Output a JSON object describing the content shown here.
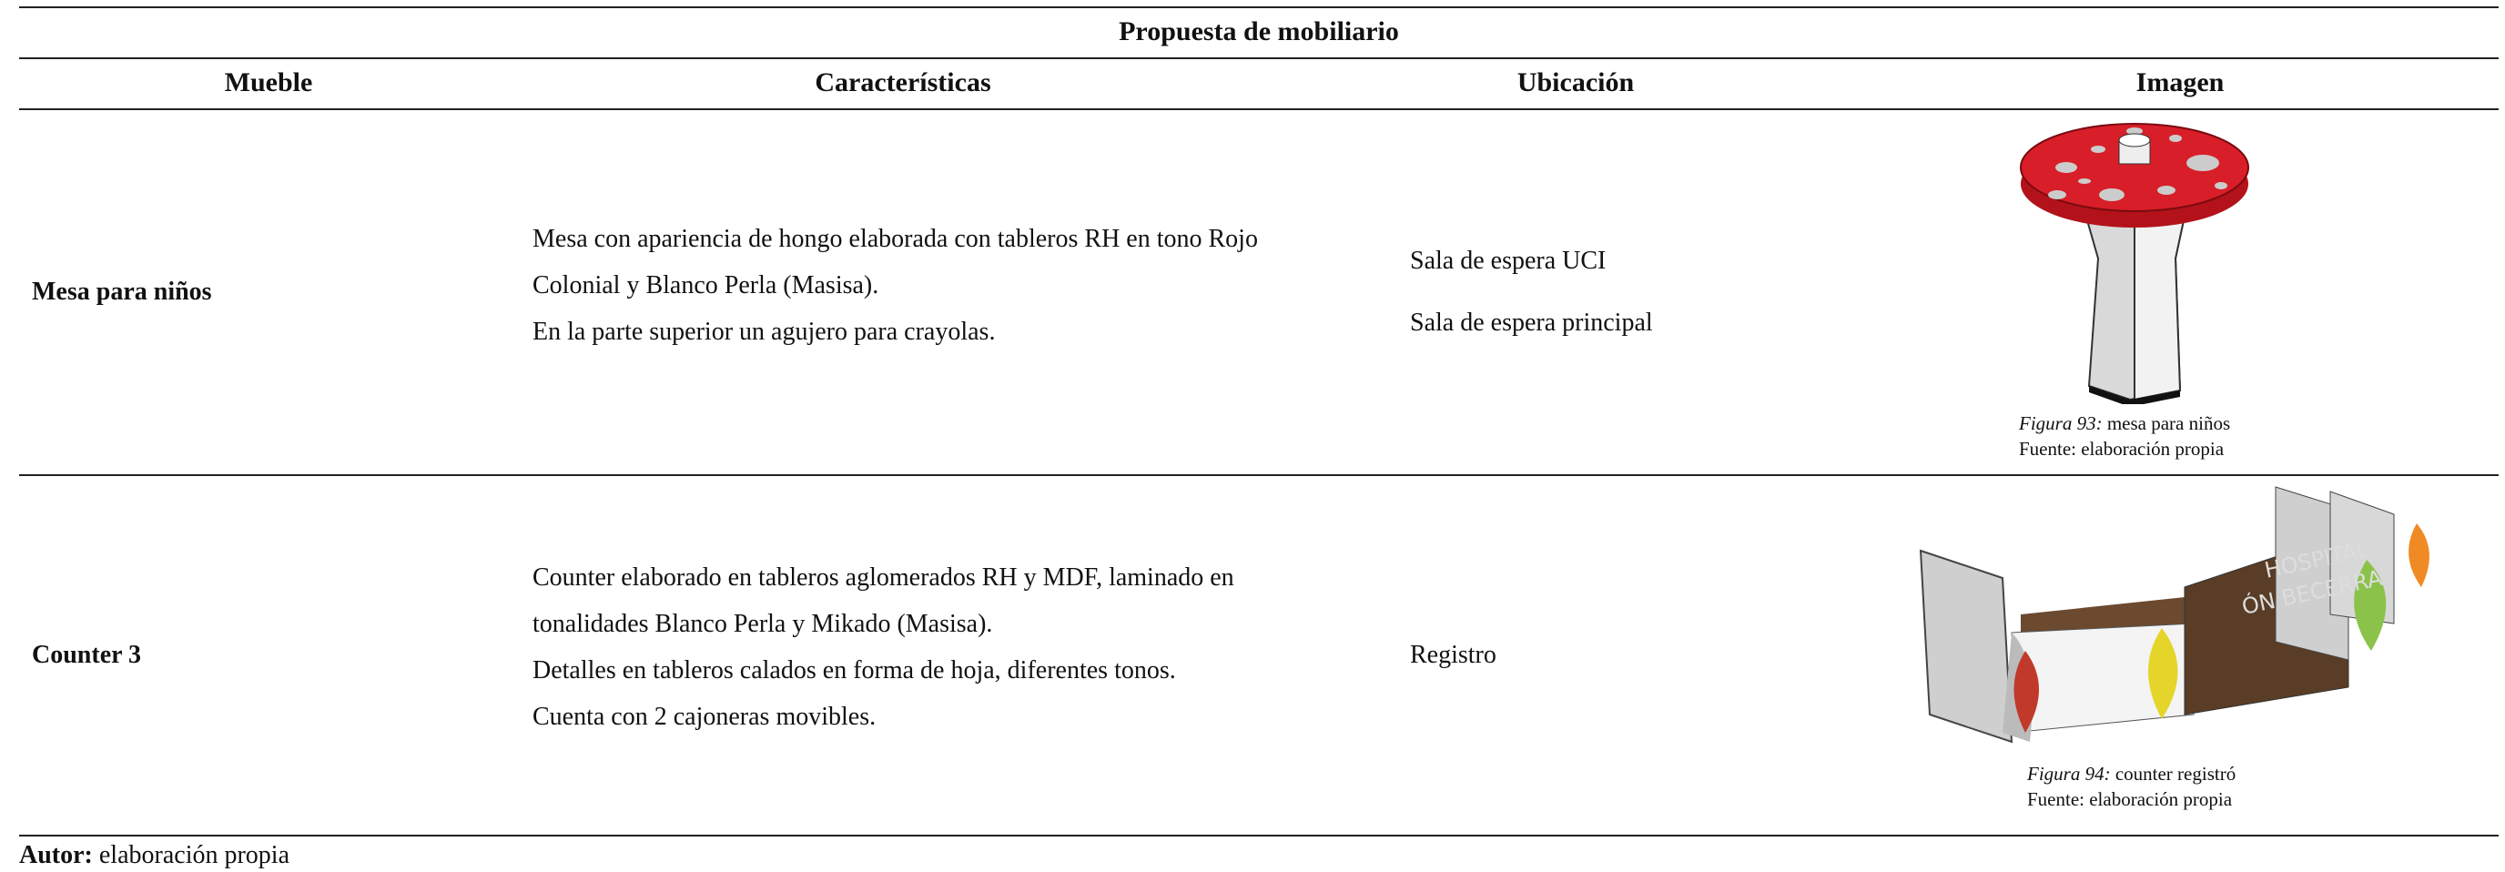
{
  "document": {
    "title": "Propuesta de mobiliario",
    "columns": [
      "Mueble",
      "Características",
      "Ubicación",
      "Imagen"
    ],
    "rows": [
      {
        "name": "Mesa para niños",
        "features": [
          "Mesa con apariencia de hongo elaborada con tableros RH en tono Rojo Colonial y Blanco Perla (Masisa).",
          "En la parte superior un agujero para crayolas."
        ],
        "locations": [
          "Sala de espera UCI",
          "Sala de espera principal"
        ],
        "figure": {
          "label": "Figura 93:",
          "caption": "mesa para niños",
          "source": "Fuente: elaboración propia"
        }
      },
      {
        "name": "Counter 3",
        "features": [
          "Counter elaborado en tableros aglomerados RH y MDF, laminado en tonalidades Blanco Perla y Mikado (Masisa).",
          "Detalles en tableros calados en forma de hoja, diferentes tonos.",
          "Cuenta con 2 cajoneras movibles."
        ],
        "locations": [
          "Registro"
        ],
        "figure": {
          "label": "Figura 94:",
          "caption": "counter registró",
          "source": "Fuente: elaboración propia"
        }
      }
    ],
    "footer": {
      "label": "Autor:",
      "text": "elaboración propia"
    }
  }
}
